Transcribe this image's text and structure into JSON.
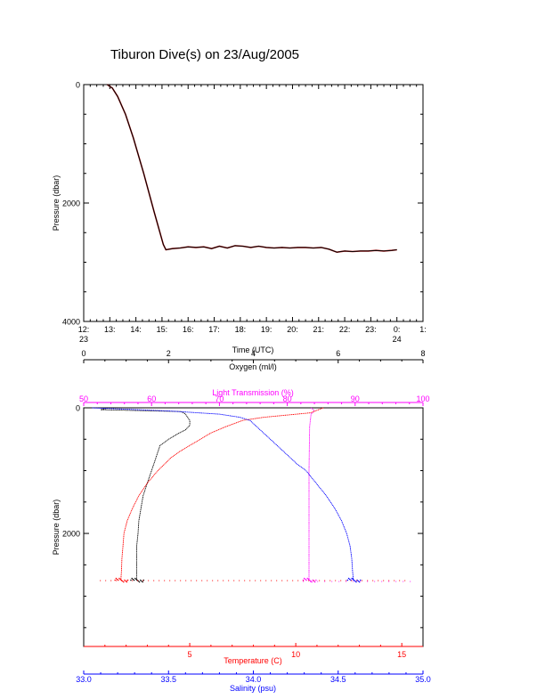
{
  "colors": {
    "axis": "#000000",
    "pressure_trace": "#000000",
    "pressure_trace_overlay": "#c01818",
    "oxygen": "#000000",
    "light_transmission": "#ff00ff",
    "temperature": "#ff0000",
    "salinity": "#0000ff"
  },
  "chart_data": [
    {
      "type": "line",
      "title": "Tiburon Dive(s) on 23/Aug/2005",
      "xlabel": "Time (UTC)",
      "ylabel": "Pressure (dbar)",
      "x_ticks": [
        {
          "label": "12:",
          "sub": "23",
          "hour": 12
        },
        {
          "label": "13:",
          "sub": "",
          "hour": 13
        },
        {
          "label": "14:",
          "sub": "",
          "hour": 14
        },
        {
          "label": "15:",
          "sub": "",
          "hour": 15
        },
        {
          "label": "16:",
          "sub": "",
          "hour": 16
        },
        {
          "label": "17:",
          "sub": "",
          "hour": 17
        },
        {
          "label": "18:",
          "sub": "",
          "hour": 18
        },
        {
          "label": "19:",
          "sub": "",
          "hour": 19
        },
        {
          "label": "20:",
          "sub": "",
          "hour": 20
        },
        {
          "label": "21:",
          "sub": "",
          "hour": 21
        },
        {
          "label": "22:",
          "sub": "",
          "hour": 22
        },
        {
          "label": "23:",
          "sub": "",
          "hour": 23
        },
        {
          "label": "0:",
          "sub": "24",
          "hour": 24
        },
        {
          "label": "1:",
          "sub": "",
          "hour": 25
        }
      ],
      "xlim": [
        12,
        25
      ],
      "y_ticks": [
        0,
        2000,
        4000
      ],
      "ylim": [
        4000,
        0
      ],
      "series": [
        {
          "x": [
            12.9,
            13.1,
            13.3,
            13.6,
            13.9,
            14.3,
            14.7,
            15.05,
            15.15,
            15.4,
            15.7,
            16.0,
            16.3,
            16.6,
            16.9,
            17.2,
            17.5,
            17.8,
            18.1,
            18.4,
            18.7,
            19.0,
            19.3,
            19.6,
            19.9,
            20.2,
            20.5,
            20.8,
            21.1,
            21.4,
            21.7,
            22.0,
            22.3,
            22.6,
            22.9,
            23.2,
            23.5,
            23.8,
            24.0
          ],
          "y": [
            0,
            60,
            200,
            500,
            900,
            1500,
            2150,
            2700,
            2790,
            2770,
            2760,
            2740,
            2750,
            2740,
            2770,
            2730,
            2760,
            2720,
            2730,
            2750,
            2730,
            2750,
            2760,
            2750,
            2760,
            2750,
            2750,
            2760,
            2750,
            2780,
            2830,
            2810,
            2820,
            2810,
            2810,
            2800,
            2810,
            2800,
            2790
          ]
        }
      ]
    },
    {
      "type": "line",
      "ylabel": "Pressure (dbar)",
      "ylim": [
        0,
        3800
      ],
      "y_ticks": [
        0,
        2000
      ],
      "axes": {
        "oxygen": {
          "label": "Oxygen (ml/l)",
          "min": 0,
          "max": 8,
          "ticks": [
            0,
            2,
            4,
            6,
            8
          ],
          "position": "top"
        },
        "light_transmission": {
          "label": "Light Transmission (%)",
          "min": 50,
          "max": 100,
          "ticks": [
            50,
            60,
            70,
            80,
            90,
            100
          ],
          "position": "top"
        },
        "temperature": {
          "label": "Temperature (C)",
          "min": 0,
          "max": 16,
          "ticks": [
            5,
            10,
            15
          ],
          "position": "bottom"
        },
        "salinity": {
          "label": "Salinity (psu)",
          "min": 33.0,
          "max": 35.0,
          "ticks": [
            "33.0",
            "33.5",
            "34.0",
            "34.5",
            "35.0"
          ],
          "tick_values": [
            33.0,
            33.5,
            34.0,
            34.5,
            35.0
          ],
          "position": "bottom"
        }
      },
      "series": [
        {
          "axis": "oxygen",
          "pressure": [
            0,
            30,
            60,
            100,
            150,
            200,
            280,
            350,
            420,
            500,
            600,
            700,
            800,
            900,
            1000,
            1200,
            1400,
            1600,
            1800,
            2000,
            2200,
            2400,
            2600,
            2750
          ],
          "values": [
            0.6,
            0.4,
            2.3,
            2.4,
            2.45,
            2.5,
            2.5,
            2.4,
            2.2,
            2.0,
            1.8,
            1.75,
            1.7,
            1.65,
            1.6,
            1.5,
            1.4,
            1.35,
            1.3,
            1.28,
            1.25,
            1.25,
            1.25,
            1.25
          ]
        },
        {
          "axis": "light_transmission",
          "pressure": [
            0,
            50,
            100,
            300,
            1000,
            2000,
            2750
          ],
          "values": [
            83.5,
            84.0,
            83.5,
            83.3,
            83.2,
            83.2,
            83.2
          ]
        },
        {
          "axis": "temperature",
          "pressure": [
            0,
            80,
            150,
            200,
            300,
            400,
            500,
            600,
            700,
            800,
            900,
            1000,
            1200,
            1400,
            1600,
            1800,
            2000,
            2200,
            2400,
            2600,
            2750
          ],
          "values": [
            11.3,
            10.7,
            8.5,
            7.5,
            6.7,
            6.0,
            5.5,
            5.0,
            4.5,
            4.1,
            3.8,
            3.5,
            3.0,
            2.6,
            2.3,
            2.05,
            1.9,
            1.85,
            1.8,
            1.78,
            1.75
          ]
        },
        {
          "axis": "salinity",
          "pressure": [
            0,
            50,
            100,
            150,
            200,
            300,
            400,
            500,
            600,
            700,
            800,
            900,
            1000,
            1200,
            1400,
            1600,
            1800,
            2000,
            2200,
            2400,
            2600,
            2750
          ],
          "values": [
            33.05,
            33.5,
            33.8,
            33.92,
            33.98,
            34.02,
            34.06,
            34.1,
            34.14,
            34.18,
            34.22,
            34.26,
            34.31,
            34.37,
            34.43,
            34.48,
            34.52,
            34.55,
            34.57,
            34.58,
            34.585,
            34.59
          ]
        }
      ]
    }
  ]
}
